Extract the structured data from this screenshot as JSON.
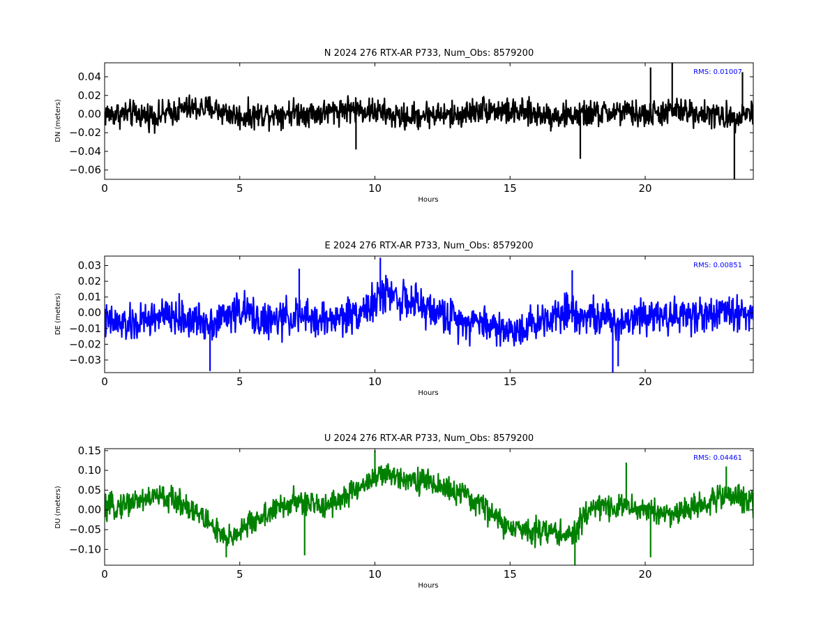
{
  "chart_data": [
    {
      "type": "line",
      "title": "N 2024 276 RTX-AR  P733, Num_Obs: 8579200",
      "xlabel": "Hours",
      "ylabel": "DN (meters)",
      "xlim": [
        0,
        24
      ],
      "ylim": [
        -0.07,
        0.055
      ],
      "xticks": [
        "0",
        "5",
        "10",
        "15",
        "20"
      ],
      "xtick_values": [
        0,
        5,
        10,
        15,
        20
      ],
      "yticks": [
        "0.04",
        "0.02",
        "0.00",
        "−0.02",
        "−0.04",
        "−0.06"
      ],
      "ytick_values": [
        0.04,
        0.02,
        0.0,
        -0.02,
        -0.04,
        -0.06
      ],
      "annotation": "RMS:  0.01007",
      "annotation_color": "#0000ff",
      "series": [
        {
          "color": "#000000",
          "trend_x": [
            0,
            1,
            2,
            3,
            4,
            5,
            6,
            7,
            8,
            9,
            10,
            11,
            12,
            13,
            14,
            15,
            16,
            17,
            18,
            19,
            20,
            21,
            22,
            23,
            24
          ],
          "trend_y": [
            0.0,
            0.0,
            -0.002,
            0.006,
            0.006,
            -0.003,
            0.0,
            0.002,
            0.001,
            0.006,
            0.003,
            -0.004,
            0.0,
            -0.002,
            0.006,
            0.002,
            0.0,
            -0.002,
            0.0,
            0.002,
            -0.001,
            0.003,
            0.002,
            -0.004,
            0.003
          ],
          "noise": 0.011,
          "spikes": [
            [
              9.3,
              -0.038
            ],
            [
              17.6,
              -0.048
            ],
            [
              20.2,
              0.05
            ],
            [
              21.0,
              0.055
            ],
            [
              23.3,
              -0.07
            ],
            [
              23.6,
              0.045
            ]
          ]
        }
      ]
    },
    {
      "type": "line",
      "title": "E 2024 276 RTX-AR  P733, Num_Obs: 8579200",
      "xlabel": "Hours",
      "ylabel": "DE (meters)",
      "xlim": [
        0,
        24
      ],
      "ylim": [
        -0.038,
        0.036
      ],
      "xticks": [
        "0",
        "5",
        "10",
        "15",
        "20"
      ],
      "xtick_values": [
        0,
        5,
        10,
        15,
        20
      ],
      "yticks": [
        "0.03",
        "0.02",
        "0.01",
        "0.00",
        "−0.01",
        "−0.02",
        "−0.03"
      ],
      "ytick_values": [
        0.03,
        0.02,
        0.01,
        0.0,
        -0.01,
        -0.02,
        -0.03
      ],
      "annotation": "RMS:  0.00851",
      "annotation_color": "#0000ff",
      "series": [
        {
          "color": "#0000ff",
          "trend_x": [
            0,
            1,
            2,
            3,
            4,
            5,
            6,
            7,
            8,
            9,
            10,
            10.5,
            11,
            12,
            13,
            14,
            15,
            16,
            17,
            18,
            19,
            20,
            21,
            22,
            23,
            24
          ],
          "trend_y": [
            -0.006,
            -0.008,
            -0.002,
            -0.004,
            -0.006,
            0.002,
            -0.006,
            -0.002,
            -0.005,
            -0.002,
            0.006,
            0.014,
            0.008,
            0.002,
            -0.004,
            -0.006,
            -0.012,
            -0.006,
            0.002,
            -0.002,
            -0.006,
            0.0,
            -0.002,
            -0.001,
            0.0,
            0.0
          ],
          "noise": 0.009,
          "spikes": [
            [
              3.9,
              -0.037
            ],
            [
              7.2,
              0.028
            ],
            [
              10.2,
              0.035
            ],
            [
              17.3,
              0.027
            ],
            [
              18.8,
              -0.038
            ],
            [
              19.0,
              -0.034
            ]
          ]
        }
      ]
    },
    {
      "type": "line",
      "title": "U 2024 276 RTX-AR  P733, Num_Obs: 8579200",
      "xlabel": "Hours",
      "ylabel": "DU (meters)",
      "xlim": [
        0,
        24
      ],
      "ylim": [
        -0.14,
        0.155
      ],
      "xticks": [
        "0",
        "5",
        "10",
        "15",
        "20"
      ],
      "xtick_values": [
        0,
        5,
        10,
        15,
        20
      ],
      "yticks": [
        "0.15",
        "0.10",
        "0.05",
        "0.00",
        "−0.05",
        "−0.10"
      ],
      "ytick_values": [
        0.15,
        0.1,
        0.05,
        0.0,
        -0.05,
        -0.1
      ],
      "annotation": "RMS:  0.04461",
      "annotation_color": "#0000ff",
      "series": [
        {
          "color": "#008000",
          "trend_x": [
            0,
            1,
            2,
            3,
            4,
            4.5,
            5,
            6,
            7,
            8,
            9,
            10,
            11,
            12,
            13,
            14,
            15,
            16,
            17,
            17.3,
            18,
            19,
            20,
            21,
            22,
            23,
            24
          ],
          "trend_y": [
            0.0,
            0.02,
            0.035,
            0.015,
            -0.04,
            -0.08,
            -0.05,
            -0.01,
            0.02,
            0.01,
            0.035,
            0.085,
            0.085,
            0.07,
            0.045,
            0.01,
            -0.05,
            -0.05,
            -0.06,
            -0.07,
            0.01,
            0.01,
            0.0,
            -0.01,
            0.01,
            0.04,
            0.02
          ],
          "noise": 0.025,
          "spikes": [
            [
              4.5,
              -0.12
            ],
            [
              7.4,
              -0.115
            ],
            [
              10.0,
              0.15
            ],
            [
              17.4,
              -0.14
            ],
            [
              19.3,
              0.12
            ],
            [
              20.2,
              -0.12
            ],
            [
              23.0,
              0.11
            ]
          ]
        }
      ]
    }
  ]
}
